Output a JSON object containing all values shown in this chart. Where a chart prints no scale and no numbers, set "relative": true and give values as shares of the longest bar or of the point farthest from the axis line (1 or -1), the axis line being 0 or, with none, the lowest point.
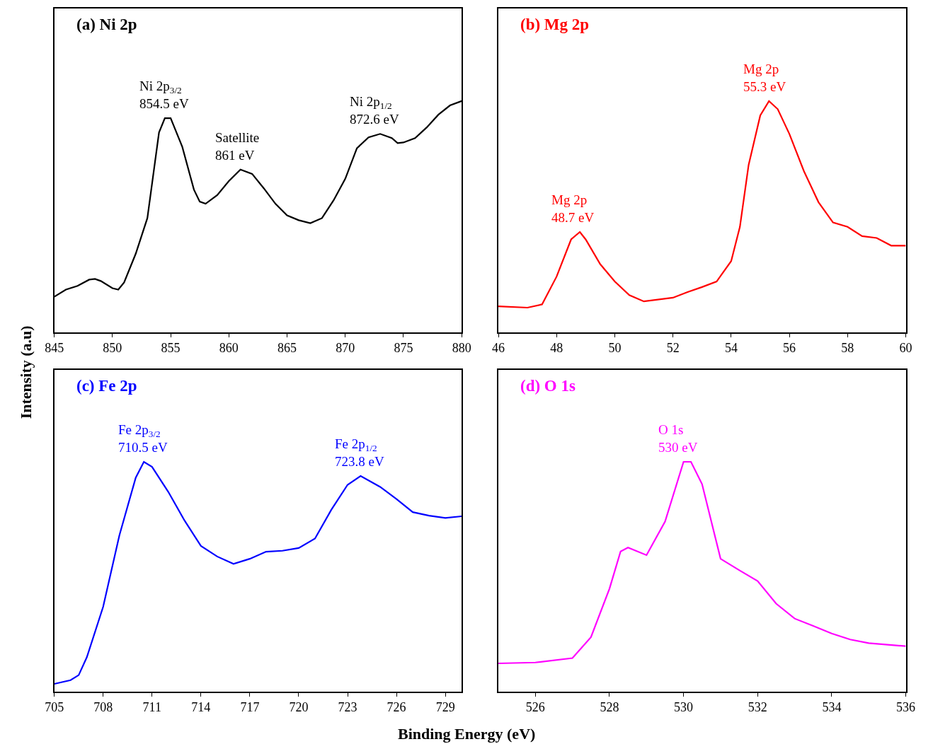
{
  "chart_data": [
    {
      "type": "line",
      "title": "(a) Ni 2p",
      "ylabel": "Intensity (a.u)",
      "relative": true,
      "xlim": [
        845,
        880
      ],
      "xticks": [
        845,
        850,
        855,
        860,
        865,
        870,
        875,
        880
      ],
      "series": [
        {
          "color": "#000000",
          "x": [
            845,
            846,
            847,
            848,
            848.5,
            849,
            850,
            850.5,
            851,
            852,
            853,
            854,
            854.5,
            855,
            856,
            857,
            857.5,
            858,
            859,
            860,
            861,
            862,
            863,
            864,
            865,
            866,
            867,
            868,
            869,
            870,
            871,
            872,
            873,
            874,
            874.5,
            875,
            876,
            877,
            878,
            879,
            880
          ],
          "values": [
            0.154,
            0.185,
            0.201,
            0.228,
            0.231,
            0.222,
            0.191,
            0.185,
            0.216,
            0.34,
            0.494,
            0.864,
            0.926,
            0.926,
            0.802,
            0.617,
            0.565,
            0.556,
            0.593,
            0.654,
            0.704,
            0.685,
            0.623,
            0.556,
            0.506,
            0.485,
            0.472,
            0.494,
            0.571,
            0.664,
            0.796,
            0.843,
            0.858,
            0.84,
            0.818,
            0.821,
            0.84,
            0.886,
            0.941,
            0.981,
            1.0
          ]
        }
      ],
      "annotations": [
        {
          "text": "Ni 2p$_{3/2}$\n854.5 eV",
          "x": 854.5,
          "y": 0.926
        },
        {
          "text": "Satellite\n861 eV",
          "x": 861,
          "y": 0.704
        },
        {
          "text": "Ni 2p$_{1/2}$\n872.6 eV",
          "x": 872.6,
          "y": 0.858
        }
      ]
    },
    {
      "type": "line",
      "title": "(b) Mg 2p",
      "relative": true,
      "xlim": [
        46,
        60
      ],
      "xticks": [
        46,
        48,
        50,
        52,
        54,
        56,
        58,
        60
      ],
      "series": [
        {
          "color": "#ff0000",
          "x": [
            46,
            47,
            47.5,
            48,
            48.5,
            48.8,
            49,
            49.5,
            50,
            50.5,
            51,
            52,
            52.5,
            53,
            53.5,
            54,
            54.3,
            54.6,
            55,
            55.3,
            55.6,
            56,
            56.5,
            57,
            57.5,
            58,
            58.5,
            59,
            59.5,
            60
          ],
          "values": [
            0.113,
            0.107,
            0.121,
            0.241,
            0.402,
            0.434,
            0.402,
            0.295,
            0.22,
            0.161,
            0.134,
            0.15,
            0.174,
            0.196,
            0.22,
            0.308,
            0.456,
            0.724,
            0.938,
            1.0,
            0.965,
            0.858,
            0.697,
            0.563,
            0.475,
            0.456,
            0.416,
            0.408,
            0.375,
            0.375
          ]
        }
      ],
      "annotations": [
        {
          "text": "Mg 2p\n48.7 eV",
          "x": 48.7,
          "y": 0.434
        },
        {
          "text": "Mg 2p\n55.3 eV",
          "x": 55.3,
          "y": 1.0
        }
      ]
    },
    {
      "type": "line",
      "title": "(c) Fe 2p",
      "xlabel": "Binding Energy (eV)",
      "relative": true,
      "xlim": [
        705,
        730
      ],
      "xticks": [
        705,
        708,
        711,
        714,
        717,
        720,
        723,
        726,
        729
      ],
      "series": [
        {
          "color": "#0000ff",
          "x": [
            705,
            706,
            706.5,
            707,
            708,
            709,
            710,
            710.5,
            711,
            712,
            713,
            714,
            715,
            716,
            717,
            718,
            719,
            720,
            721,
            722,
            723,
            723.8,
            725,
            726,
            727,
            728,
            729,
            730
          ],
          "values": [
            0.034,
            0.05,
            0.072,
            0.15,
            0.369,
            0.681,
            0.931,
            1.0,
            0.978,
            0.869,
            0.744,
            0.634,
            0.588,
            0.556,
            0.578,
            0.609,
            0.613,
            0.625,
            0.666,
            0.791,
            0.9,
            0.938,
            0.891,
            0.838,
            0.781,
            0.766,
            0.756,
            0.763
          ]
        }
      ],
      "annotations": [
        {
          "text": "Fe 2p$_{3/2}$\n710.5 eV",
          "x": 710.5,
          "y": 1.0
        },
        {
          "text": "Fe 2p$_{1/2}$\n723.8 eV",
          "x": 723.8,
          "y": 0.938
        }
      ]
    },
    {
      "type": "line",
      "title": "(d) O 1s",
      "relative": true,
      "xlim": [
        525,
        536
      ],
      "xticks": [
        526,
        528,
        530,
        532,
        534,
        536
      ],
      "series": [
        {
          "color": "#ff00ff",
          "x": [
            525,
            526,
            527,
            527.5,
            528,
            528.3,
            528.5,
            529,
            529.5,
            530,
            530.2,
            530.5,
            531,
            531.5,
            532,
            532.5,
            533,
            533.5,
            534,
            534.5,
            535,
            536
          ],
          "values": [
            0.123,
            0.127,
            0.146,
            0.237,
            0.448,
            0.61,
            0.627,
            0.594,
            0.74,
            1.0,
            1.0,
            0.903,
            0.578,
            0.529,
            0.481,
            0.383,
            0.318,
            0.286,
            0.253,
            0.227,
            0.211,
            0.198
          ]
        }
      ],
      "annotations": [
        {
          "text": "O 1s\n530 eV",
          "x": 530,
          "y": 1.0
        }
      ]
    }
  ]
}
